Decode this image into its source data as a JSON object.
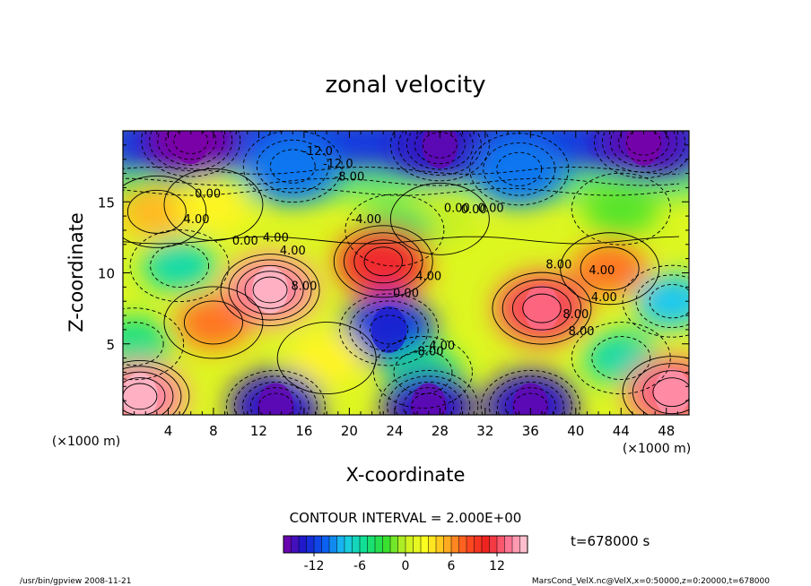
{
  "chart_data": {
    "type": "heatmap",
    "title": "zonal velocity",
    "xlabel": "X-coordinate",
    "ylabel": "Z-coordinate",
    "x_unit_label": "(×1000 m)",
    "y_unit_label": "(×1000 m)",
    "xlim": [
      0,
      50
    ],
    "ylim": [
      0,
      20
    ],
    "x_ticks": [
      4,
      8,
      12,
      16,
      20,
      24,
      28,
      32,
      36,
      40,
      44,
      48
    ],
    "y_ticks": [
      5,
      10,
      15
    ],
    "contour_interval_label": "CONTOUR INTERVAL = 2.000E+00",
    "time_label": "t=678000 s",
    "colorbar": {
      "min": -16,
      "max": 16,
      "ticks": [
        -12,
        -6,
        0,
        6,
        12
      ],
      "stops": [
        "#7a00a8",
        "#1a1acc",
        "#0a5af0",
        "#1ac8f0",
        "#10e090",
        "#30e030",
        "#c8f020",
        "#ffff20",
        "#ffb020",
        "#ff5020",
        "#ee2020",
        "#ff7090",
        "#ffd0dc"
      ]
    },
    "contour_labels": [
      "-12.0",
      "-12.0",
      "-8.00",
      "-4.00",
      "0.00",
      "0.00",
      "0.00",
      "0.00",
      "4.00",
      "4.00",
      "4.00",
      "8.00",
      "8.00",
      "4.00",
      "0.00",
      "8.00",
      "4.00",
      "-4.00",
      "-8.00",
      "8.00",
      "4.00",
      "0.00"
    ],
    "field_features": [
      {
        "x": 6,
        "z": 19.3,
        "value": -16
      },
      {
        "x": 28,
        "z": 19.0,
        "value": -14
      },
      {
        "x": 46,
        "z": 19.2,
        "value": -15
      },
      {
        "x": 15,
        "z": 17.5,
        "value": -10
      },
      {
        "x": 35,
        "z": 17.3,
        "value": -10
      },
      {
        "x": 3,
        "z": 14.3,
        "value": 5
      },
      {
        "x": 8,
        "z": 14.8,
        "value": 3
      },
      {
        "x": 28,
        "z": 13.8,
        "value": 0
      },
      {
        "x": 44,
        "z": 14.5,
        "value": -2
      },
      {
        "x": 24,
        "z": 13.0,
        "value": -4
      },
      {
        "x": 23,
        "z": 10.8,
        "value": 11
      },
      {
        "x": 13,
        "z": 8.8,
        "value": 14
      },
      {
        "x": 37,
        "z": 7.5,
        "value": 12
      },
      {
        "x": 43,
        "z": 10.3,
        "value": 7
      },
      {
        "x": 5,
        "z": 10.5,
        "value": -6
      },
      {
        "x": 23.5,
        "z": 6.0,
        "value": -12
      },
      {
        "x": 48.5,
        "z": 8.0,
        "value": -8
      },
      {
        "x": 1,
        "z": 5.0,
        "value": -5
      },
      {
        "x": 8,
        "z": 6.5,
        "value": 7
      },
      {
        "x": 26.5,
        "z": 3.0,
        "value": -5
      },
      {
        "x": 44,
        "z": 4.0,
        "value": -6
      },
      {
        "x": 18,
        "z": 4.0,
        "value": 3
      },
      {
        "x": 1.5,
        "z": 1.3,
        "value": 14
      },
      {
        "x": 48.5,
        "z": 1.6,
        "value": 13
      },
      {
        "x": 13.5,
        "z": 0.6,
        "value": -14
      },
      {
        "x": 27,
        "z": 0.6,
        "value": -14
      },
      {
        "x": 36,
        "z": 0.6,
        "value": -14
      }
    ]
  },
  "footer": {
    "left": "/usr/bin/gpview   2008-11-21",
    "right": "MarsCond_VelX.nc@VelX,x=0:50000,z=0:20000,t=678000"
  }
}
